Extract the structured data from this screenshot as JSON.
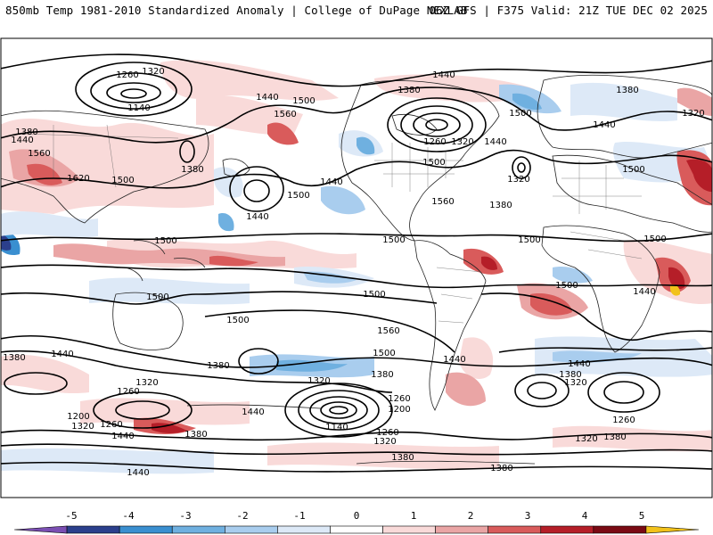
{
  "header": {
    "title": "850mb Temp 1981-2010 Standardized Anomaly | College of DuPage NEXLAB",
    "run_info": "06Z GFS | F375 Valid: 21Z TUE DEC 02 2025"
  },
  "colorbar": {
    "ticks": [
      "-5",
      "-4",
      "-3",
      "-2",
      "-1",
      "0",
      "1",
      "2",
      "3",
      "4",
      "5"
    ],
    "colors": [
      "#7b4fb3",
      "#2b3f8c",
      "#3a8fd0",
      "#6fb0e0",
      "#a9cdee",
      "#dde9f7",
      "#ffffff",
      "#f9dad9",
      "#eaa5a5",
      "#d95b5b",
      "#b51e28",
      "#7a0a14",
      "#f2c21b"
    ]
  },
  "colors": {
    "contour": "#000000",
    "coastline": "#222222"
  },
  "height_labels": [
    "1320",
    "1260",
    "1140",
    "1440",
    "1500",
    "1560",
    "1380",
    "1440",
    "1560",
    "1620",
    "1500",
    "1380",
    "1440",
    "1500",
    "1500",
    "1440",
    "1380",
    "1260",
    "1320",
    "1440",
    "1500",
    "1320",
    "1380",
    "1440",
    "1380",
    "1440",
    "1320",
    "1500",
    "1500",
    "1500",
    "1500",
    "1500",
    "1560",
    "1500",
    "1500",
    "1500",
    "1500",
    "1440",
    "1380",
    "1260",
    "1200",
    "1320",
    "1260",
    "1440",
    "1380",
    "1440",
    "1320",
    "1260",
    "1380",
    "1200",
    "1140",
    "1260",
    "1440",
    "1320",
    "1380",
    "1440",
    "1380",
    "1320",
    "1500",
    "1560",
    "1440",
    "1380",
    "1320",
    "1260",
    "1440",
    "1380",
    "1320",
    "1380"
  ]
}
